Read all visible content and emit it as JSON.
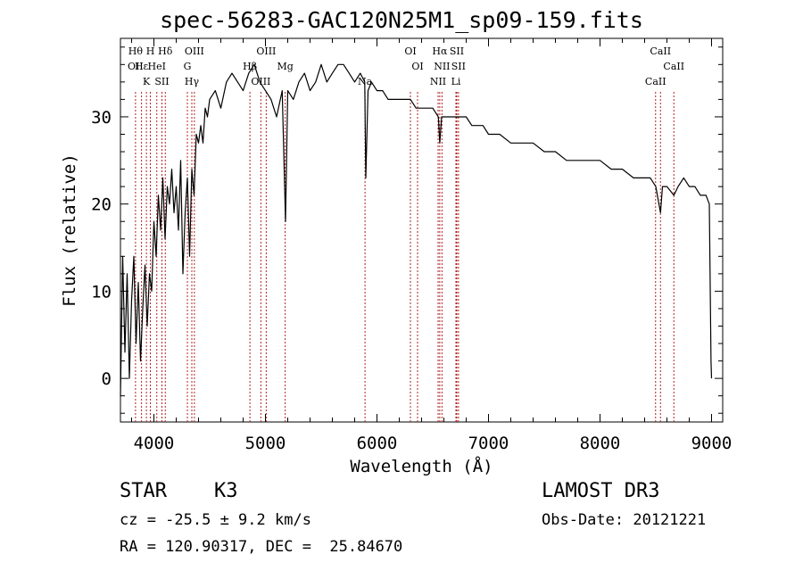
{
  "chart_data": {
    "type": "line",
    "title": "spec-56283-GAC120N25M1_sp09-159.fits",
    "xlabel": "Wavelength (Å)",
    "ylabel": "Flux (relative)",
    "xlim": [
      3700,
      9100
    ],
    "ylim": [
      -5,
      39
    ],
    "xticks": [
      4000,
      5000,
      6000,
      7000,
      8000,
      9000
    ],
    "yticks": [
      0,
      10,
      20,
      30
    ],
    "series": [
      {
        "name": "spectrum",
        "x": [
          3700,
          3720,
          3740,
          3760,
          3780,
          3800,
          3820,
          3840,
          3860,
          3880,
          3900,
          3920,
          3940,
          3960,
          3980,
          4000,
          4020,
          4040,
          4060,
          4080,
          4100,
          4120,
          4140,
          4160,
          4180,
          4200,
          4220,
          4240,
          4260,
          4280,
          4300,
          4320,
          4340,
          4360,
          4380,
          4400,
          4420,
          4440,
          4460,
          4480,
          4500,
          4550,
          4600,
          4650,
          4700,
          4750,
          4800,
          4850,
          4900,
          4950,
          5000,
          5050,
          5100,
          5150,
          5180,
          5200,
          5250,
          5300,
          5350,
          5400,
          5450,
          5500,
          5550,
          5600,
          5650,
          5700,
          5750,
          5800,
          5850,
          5890,
          5900,
          5920,
          5950,
          6000,
          6050,
          6100,
          6150,
          6200,
          6250,
          6300,
          6350,
          6400,
          6450,
          6500,
          6550,
          6563,
          6580,
          6600,
          6650,
          6700,
          6750,
          6800,
          6850,
          6900,
          6950,
          7000,
          7100,
          7200,
          7300,
          7400,
          7500,
          7600,
          7700,
          7800,
          7900,
          8000,
          8100,
          8200,
          8300,
          8400,
          8450,
          8500,
          8542,
          8560,
          8600,
          8662,
          8700,
          8750,
          8800,
          8850,
          8900,
          8950,
          8980,
          8995,
          9000
        ],
        "y": [
          -2,
          14,
          3,
          12,
          0,
          9,
          14,
          4,
          11,
          2,
          8,
          13,
          6,
          12,
          10,
          18,
          14,
          21,
          17,
          23,
          16,
          22,
          20,
          24,
          19,
          22,
          17,
          25,
          12,
          19,
          23,
          14,
          24,
          21,
          28,
          27,
          29,
          27,
          31,
          30,
          32,
          33,
          31,
          34,
          35,
          34,
          33,
          35,
          36,
          34,
          33,
          32,
          30,
          33,
          18,
          33,
          32,
          34,
          35,
          33,
          34,
          36,
          34,
          35,
          36,
          36,
          35,
          34,
          35,
          34,
          23,
          33,
          34,
          33,
          33,
          32,
          32,
          32,
          32,
          32,
          31,
          31,
          31,
          31,
          30,
          27,
          30,
          30,
          30,
          30,
          30,
          30,
          29,
          29,
          29,
          28,
          28,
          27,
          27,
          27,
          26,
          26,
          25,
          25,
          25,
          25,
          24,
          24,
          23,
          23,
          23,
          22,
          19,
          22,
          22,
          21,
          22,
          23,
          22,
          22,
          21,
          21,
          20,
          2,
          0
        ]
      }
    ],
    "line_marks": [
      {
        "x": 3835,
        "labels": [
          "Hθ",
          "OII"
        ]
      },
      {
        "x": 3889,
        "labels": [
          "Hε"
        ]
      },
      {
        "x": 3933,
        "labels": [
          "K"
        ]
      },
      {
        "x": 3968,
        "labels": [
          "H"
        ]
      },
      {
        "x": 4026,
        "labels": [
          "HeI"
        ]
      },
      {
        "x": 4072,
        "labels": [
          "SII"
        ]
      },
      {
        "x": 4102,
        "labels": [
          "Hδ"
        ]
      },
      {
        "x": 4300,
        "labels": [
          "G"
        ]
      },
      {
        "x": 4340,
        "labels": [
          "Hγ"
        ]
      },
      {
        "x": 4363,
        "labels": [
          "OIII"
        ]
      },
      {
        "x": 4861,
        "labels": [
          "Hβ"
        ]
      },
      {
        "x": 4959,
        "labels": [
          "OIII"
        ]
      },
      {
        "x": 5007,
        "labels": [
          "OIII"
        ]
      },
      {
        "x": 5177,
        "labels": [
          "Mg"
        ]
      },
      {
        "x": 5893,
        "labels": [
          "Na"
        ]
      },
      {
        "x": 6300,
        "labels": [
          "OI"
        ]
      },
      {
        "x": 6364,
        "labels": [
          "OI"
        ]
      },
      {
        "x": 6548,
        "labels": [
          "NII"
        ]
      },
      {
        "x": 6563,
        "labels": [
          "Hα"
        ]
      },
      {
        "x": 6583,
        "labels": [
          "NII"
        ]
      },
      {
        "x": 6708,
        "labels": [
          "Li"
        ]
      },
      {
        "x": 6716,
        "labels": [
          "SII"
        ]
      },
      {
        "x": 6731,
        "labels": [
          "SII"
        ]
      },
      {
        "x": 8498,
        "labels": [
          "CaII"
        ]
      },
      {
        "x": 8542,
        "labels": [
          "CaII"
        ]
      },
      {
        "x": 8662,
        "labels": [
          "CaII"
        ]
      }
    ]
  },
  "info": {
    "class": "STAR",
    "subclass": "K3",
    "survey": "LAMOST DR3",
    "cz": "cz = -25.5 ± 9.2 km/s",
    "obs_date": "Obs-Date: 20121221",
    "radec": "RA = 120.90317, DEC =  25.84670"
  },
  "colors": {
    "line_marker": "#b22222",
    "spectrum": "#000000"
  }
}
